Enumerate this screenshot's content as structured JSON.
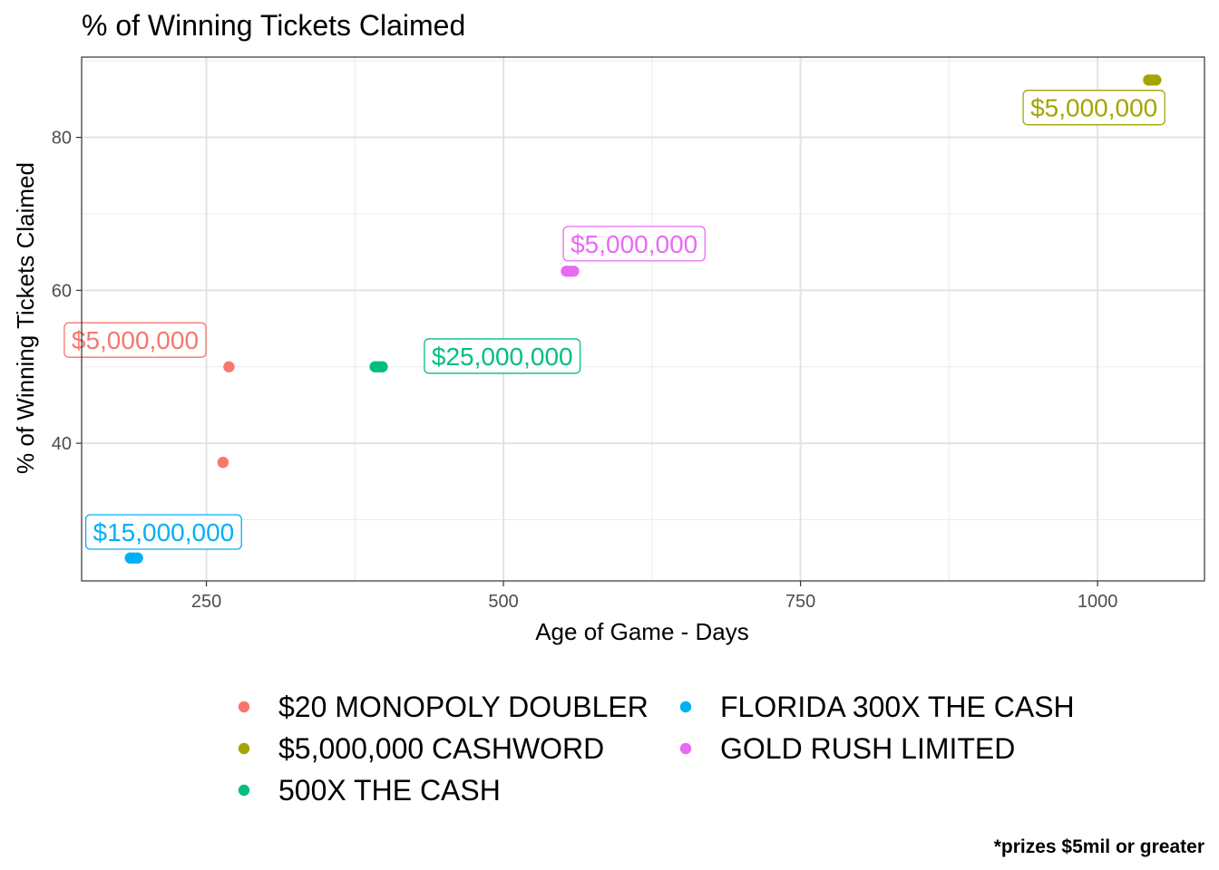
{
  "chart_data": {
    "type": "scatter",
    "title": "% of Winning Tickets Claimed",
    "xlabel": "Age of Game - Days",
    "ylabel": "% of Winning Tickets Claimed",
    "caption": "*prizes $5mil or greater",
    "xlim": [
      145,
      1090
    ],
    "ylim": [
      22,
      90.5
    ],
    "x_ticks": [
      250,
      500,
      750,
      1000
    ],
    "x_tick_labels": [
      "250",
      "500",
      "750",
      "1000"
    ],
    "y_ticks": [
      40,
      60,
      80
    ],
    "y_tick_labels": [
      "40",
      "60",
      "80"
    ],
    "grid": true,
    "legend_position": "bottom",
    "series": [
      {
        "name": "$20 MONOPOLY DOUBLER",
        "color": "#F8766D",
        "points": [
          {
            "x": 264,
            "y": 37.5
          },
          {
            "x": 269,
            "y": 50
          }
        ],
        "label": {
          "text": "$5,000,000",
          "x": 190,
          "y": 53.5
        }
      },
      {
        "name": "$5,000,000 CASHWORD",
        "color": "#A3A500",
        "points": [
          {
            "x": 1043,
            "y": 87.5
          },
          {
            "x": 1046,
            "y": 87.5
          },
          {
            "x": 1049,
            "y": 87.5
          }
        ],
        "label": {
          "text": "$5,000,000",
          "x": 997,
          "y": 83.9
        }
      },
      {
        "name": "500X THE CASH",
        "color": "#00BF7D",
        "points": [
          {
            "x": 392,
            "y": 50
          },
          {
            "x": 395,
            "y": 50
          },
          {
            "x": 398,
            "y": 50
          }
        ],
        "label": {
          "text": "$25,000,000",
          "x": 499,
          "y": 51.4
        }
      },
      {
        "name": "FLORIDA 300X THE CASH",
        "color": "#00B0F6",
        "points": [
          {
            "x": 186,
            "y": 25
          },
          {
            "x": 189,
            "y": 25
          },
          {
            "x": 192,
            "y": 25
          }
        ],
        "label": {
          "text": "$15,000,000",
          "x": 214,
          "y": 28.4
        }
      },
      {
        "name": "GOLD RUSH LIMITED",
        "color": "#E76BF3",
        "points": [
          {
            "x": 553,
            "y": 62.5
          },
          {
            "x": 556,
            "y": 62.5
          },
          {
            "x": 559,
            "y": 62.5
          }
        ],
        "label": {
          "text": "$5,000,000",
          "x": 610,
          "y": 66.1
        }
      }
    ]
  }
}
